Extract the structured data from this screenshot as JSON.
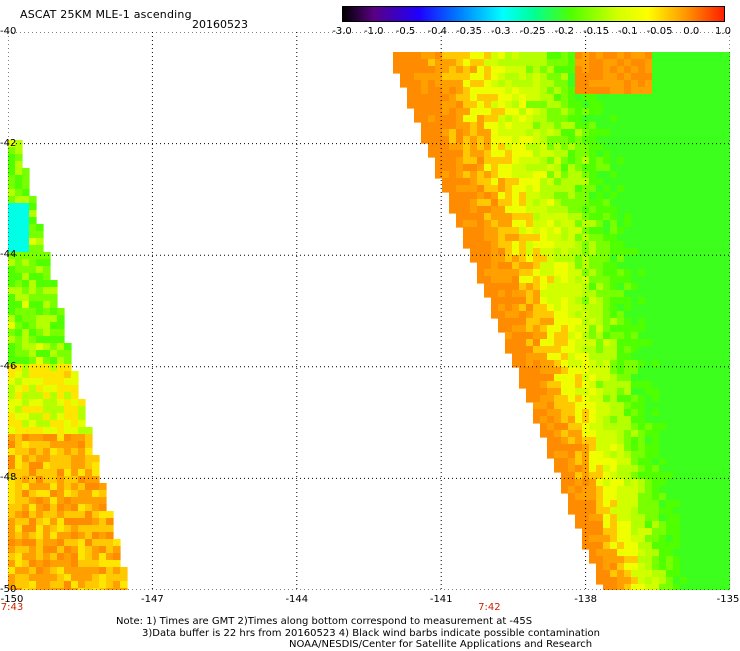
{
  "header": {
    "title": "ASCAT 25KM MLE-1 ascending",
    "date": "20160523"
  },
  "colorbar": {
    "labels": [
      "-3.0",
      "-1.0",
      "-0.5",
      "-0.4",
      "-0.35",
      "-0.3",
      "-0.25",
      "-0.2",
      "-0.15",
      "-0.1",
      "-0.05",
      "0.0",
      "1.0"
    ],
    "colors": [
      "#000000",
      "#5a0082",
      "#1e00ff",
      "#0078ff",
      "#00c8ff",
      "#00ffd2",
      "#00ff64",
      "#50ff00",
      "#b4ff00",
      "#f0ff00",
      "#ffc800",
      "#ff8c00",
      "#ff2800"
    ]
  },
  "map": {
    "lat_min": -50,
    "lat_max": -40,
    "lon_min": -150,
    "lon_max": -135,
    "lat_labels": [
      "-40",
      "-42",
      "-44",
      "-46",
      "-48",
      "-50"
    ],
    "lon_labels": [
      "-150",
      "-147",
      "-144",
      "-141",
      "-138",
      "-135"
    ],
    "time_labels": [
      {
        "text": "7:43",
        "lon": -150
      },
      {
        "text": "7:42",
        "lon": -140
      }
    ],
    "swaths": [
      {
        "name": "west-swath",
        "dominant_value_range": "-0.2 to 0.0",
        "colors": [
          "#50ff00",
          "#b4ff00",
          "#f0ff00",
          "#ffc800",
          "#ff8c00"
        ]
      },
      {
        "name": "east-swath",
        "dominant_value_range": "-0.2 to 0.0",
        "colors": [
          "#ff8c00",
          "#ffc800",
          "#f0ff00",
          "#b4ff00",
          "#50ff00"
        ]
      }
    ]
  },
  "notes": {
    "line1": "Note: 1) Times are GMT 2)Times along bottom correspond to measurement at -45S",
    "line2": "3)Data buffer is 22 hrs from 20160523 4) Black wind barbs indicate possible contamination",
    "line3": "NOAA/NESDIS/Center for Satellite Applications and Research"
  }
}
